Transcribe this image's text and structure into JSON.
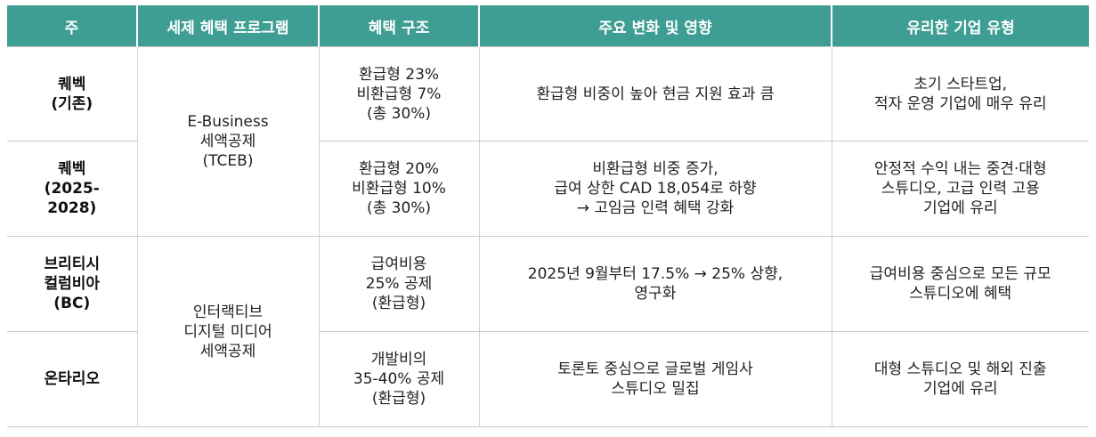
{
  "header": {
    "col1": "주",
    "col2": "세제 혜택 프로그램",
    "col3": "혜택 구조",
    "col4": "주요 변화 및 영향",
    "col5": "유리한 기업 유형"
  },
  "rows": [
    {
      "region": [
        "퀘벡",
        "(기존)"
      ],
      "structure": [
        "환급형 23%",
        "비환급형 7%",
        "(총 30%)"
      ],
      "change": [
        "환급형 비중이 높아 현금 지원 효과 큼"
      ],
      "favored": [
        "초기 스타트업,",
        "적자 운영 기업에 매우 유리"
      ]
    },
    {
      "region": [
        "퀘벡",
        "(2025-",
        "2028)"
      ],
      "structure": [
        "환급형 20%",
        "비환급형 10%",
        "(총 30%)"
      ],
      "change": [
        "비환급형 비중 증가,",
        "급여 상한 CAD 18,054로 하향",
        "→ 고임금 인력 혜택 강화"
      ],
      "favored": [
        "안정적 수익 내는 중견·대형",
        "스튜디오, 고급 인력 고용",
        "기업에 유리"
      ]
    },
    {
      "region": [
        "브리티시",
        "컬럼비아",
        "(BC)"
      ],
      "structure": [
        "급여비용",
        "25% 공제",
        "(환급형)"
      ],
      "change": [
        "2025년 9월부터 17.5% → 25% 상향,",
        "영구화"
      ],
      "favored": [
        "급여비용 중심으로 모든 규모",
        "스튜디오에 혜택"
      ]
    },
    {
      "region": [
        "온타리오"
      ],
      "structure": [
        "개발비의",
        "35-40% 공제",
        "(환급형)"
      ],
      "change": [
        "토론토 중심으로 글로벌 게임사",
        "스튜디오 밀집"
      ],
      "favored": [
        "대형 스튜디오 및 해외 진출",
        "기업에 유리"
      ]
    }
  ],
  "programs": {
    "quebec": [
      "E-Business",
      "세액공제",
      "(TCEB)"
    ],
    "bc_ontario": [
      "인터랙티브",
      "디지털 미디어",
      "세액공제"
    ]
  }
}
